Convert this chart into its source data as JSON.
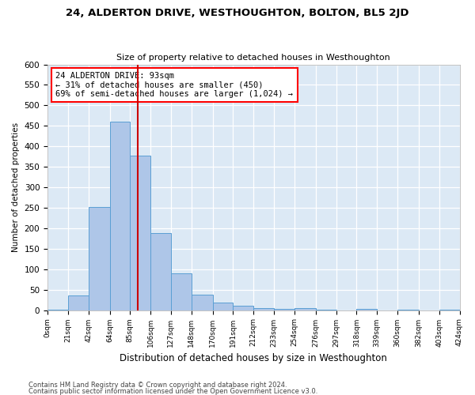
{
  "title": "24, ALDERTON DRIVE, WESTHOUGHTON, BOLTON, BL5 2JD",
  "subtitle": "Size of property relative to detached houses in Westhoughton",
  "xlabel": "Distribution of detached houses by size in Westhoughton",
  "ylabel": "Number of detached properties",
  "footer_line1": "Contains HM Land Registry data © Crown copyright and database right 2024.",
  "footer_line2": "Contains public sector information licensed under the Open Government Licence v3.0.",
  "annotation_title": "24 ALDERTON DRIVE: 93sqm",
  "annotation_line1": "← 31% of detached houses are smaller (450)",
  "annotation_line2": "69% of semi-detached houses are larger (1,024) →",
  "bar_edges": [
    0,
    21,
    42,
    64,
    85,
    106,
    127,
    148,
    170,
    191,
    212,
    233,
    254,
    276,
    297,
    318,
    339,
    360,
    382,
    403,
    424
  ],
  "bar_heights": [
    2,
    35,
    252,
    460,
    378,
    188,
    90,
    38,
    18,
    10,
    5,
    3,
    5,
    1,
    0,
    3,
    0,
    1,
    0,
    1
  ],
  "bar_color": "#aec6e8",
  "bar_edge_color": "#5a9fd4",
  "property_size": 93,
  "vline_color": "#cc0000",
  "ylim": [
    0,
    600
  ],
  "yticks": [
    0,
    50,
    100,
    150,
    200,
    250,
    300,
    350,
    400,
    450,
    500,
    550,
    600
  ],
  "plot_bg_color": "#dce9f5",
  "grid_color": "#ffffff",
  "tick_labels": [
    "0sqm",
    "21sqm",
    "42sqm",
    "64sqm",
    "85sqm",
    "106sqm",
    "127sqm",
    "148sqm",
    "170sqm",
    "191sqm",
    "212sqm",
    "233sqm",
    "254sqm",
    "276sqm",
    "297sqm",
    "318sqm",
    "339sqm",
    "360sqm",
    "382sqm",
    "403sqm",
    "424sqm"
  ]
}
